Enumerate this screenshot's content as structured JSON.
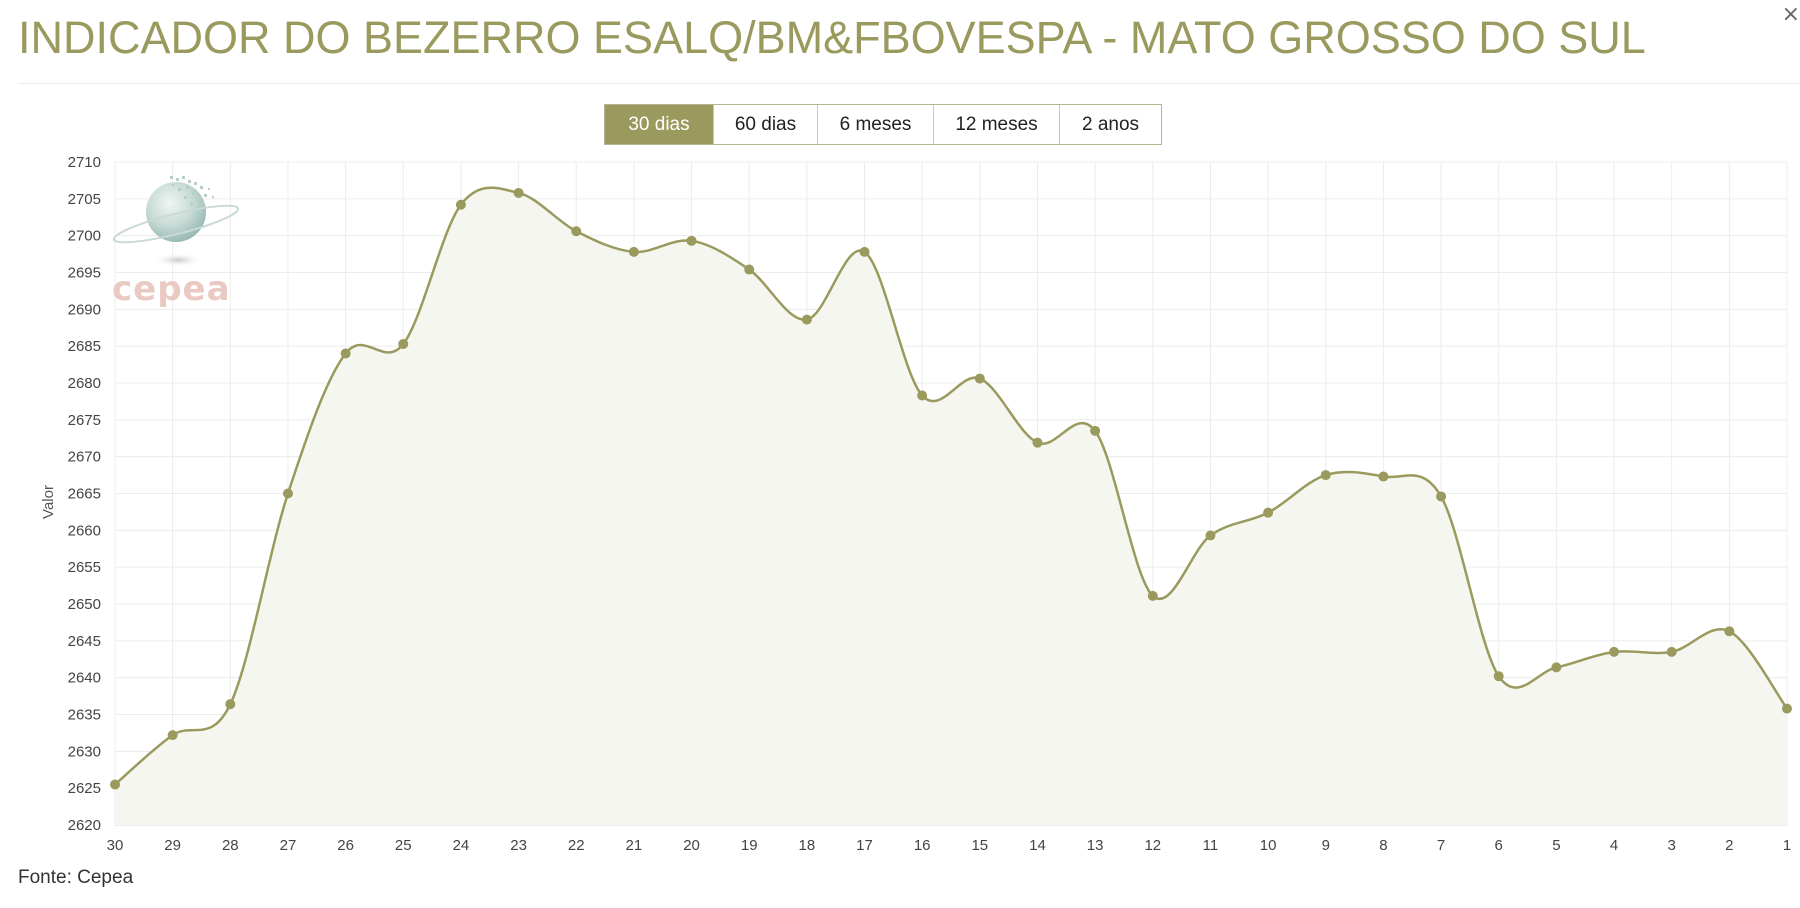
{
  "page": {
    "title": "INDICADOR DO BEZERRO ESALQ/BM&FBOVESPA - MATO GROSSO DO SUL",
    "source": "Fonte: Cepea",
    "corner_glyph": "×"
  },
  "range_selector": {
    "options": [
      {
        "label": "30 dias",
        "active": true
      },
      {
        "label": "60 dias",
        "active": false
      },
      {
        "label": "6 meses",
        "active": false
      },
      {
        "label": "12 meses",
        "active": false
      },
      {
        "label": "2 anos",
        "active": false
      }
    ]
  },
  "watermark": {
    "text": "cepea",
    "icon": "globe-logo-icon"
  },
  "colors": {
    "accent": "#9a9a5e",
    "title": "#9a9a5e",
    "line": "#9a9a5e",
    "area_fill": "#f6f6f1",
    "grid": "#ececec",
    "watermark_text": "#e9c9c2"
  },
  "chart_data": {
    "type": "area",
    "title": "",
    "xlabel": "",
    "ylabel": "Valor",
    "x": [
      "30",
      "29",
      "28",
      "27",
      "26",
      "25",
      "24",
      "23",
      "22",
      "21",
      "20",
      "19",
      "18",
      "17",
      "16",
      "15",
      "14",
      "13",
      "12",
      "11",
      "10",
      "9",
      "8",
      "7",
      "6",
      "5",
      "4",
      "3",
      "2",
      "1"
    ],
    "series": [
      {
        "values": [
          2625.5,
          2632.2,
          2636.4,
          2665.0,
          2684.0,
          2685.3,
          2704.2,
          2705.8,
          2700.6,
          2697.8,
          2699.3,
          2695.4,
          2688.6,
          2697.8,
          2678.3,
          2680.6,
          2671.9,
          2673.5,
          2651.1,
          2659.3,
          2662.4,
          2667.5,
          2667.3,
          2664.6,
          2640.2,
          2641.4,
          2643.5,
          2643.5,
          2646.3,
          2635.8
        ]
      }
    ],
    "ylim": [
      2620,
      2710
    ],
    "yticks": [
      2620,
      2625,
      2630,
      2635,
      2640,
      2645,
      2650,
      2655,
      2660,
      2665,
      2670,
      2675,
      2680,
      2685,
      2690,
      2695,
      2700,
      2705,
      2710
    ],
    "grid": true,
    "legend": "none"
  }
}
